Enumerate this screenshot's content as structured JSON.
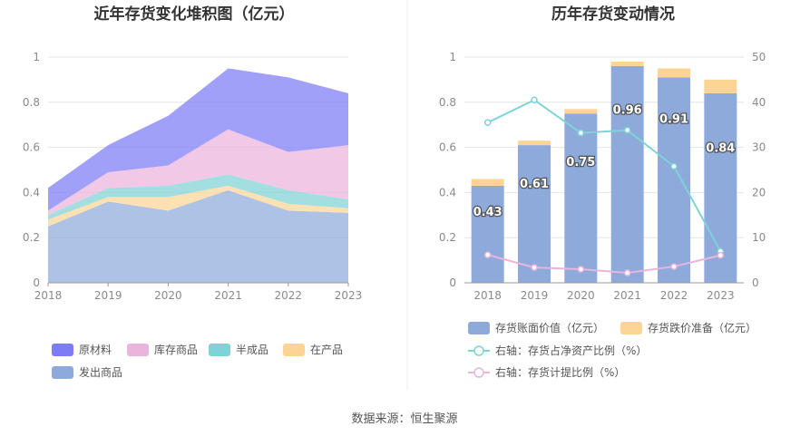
{
  "footer": "数据来源：恒生聚源",
  "chart_data": [
    {
      "type": "area",
      "stacked": true,
      "title": "近年存货变化堆积图（亿元）",
      "categories": [
        "2018",
        "2019",
        "2020",
        "2021",
        "2022",
        "2023"
      ],
      "ylim": [
        0,
        1
      ],
      "yticks": [
        "0",
        "0.2",
        "0.4",
        "0.6",
        "0.8",
        "1"
      ],
      "series": [
        {
          "name": "发出商品",
          "color": "#8eaadb",
          "values": [
            0.25,
            0.36,
            0.32,
            0.41,
            0.32,
            0.31
          ]
        },
        {
          "name": "在产品",
          "color": "#fcd594",
          "values": [
            0.03,
            0.02,
            0.06,
            0.02,
            0.03,
            0.02
          ]
        },
        {
          "name": "半成品",
          "color": "#7fd3d6",
          "values": [
            0.02,
            0.04,
            0.05,
            0.05,
            0.06,
            0.04
          ]
        },
        {
          "name": "库存商品",
          "color": "#ebb4dc",
          "values": [
            0.02,
            0.07,
            0.09,
            0.2,
            0.17,
            0.24
          ]
        },
        {
          "name": "原材料",
          "color": "#7c7cf5",
          "values": [
            0.1,
            0.12,
            0.22,
            0.27,
            0.33,
            0.23
          ]
        }
      ],
      "legend": [
        "原材料",
        "库存商品",
        "半成品",
        "在产品",
        "发出商品"
      ],
      "grid": true,
      "legend_position": "bottom"
    },
    {
      "type": "bar",
      "title": "历年存货变动情况",
      "categories": [
        "2018",
        "2019",
        "2020",
        "2021",
        "2022",
        "2023"
      ],
      "ylim": [
        0,
        1
      ],
      "yticks": [
        "0",
        "0.2",
        "0.4",
        "0.6",
        "0.8",
        "1"
      ],
      "y2lim": [
        0,
        50
      ],
      "y2ticks": [
        "0",
        "10",
        "20",
        "30",
        "40",
        "50"
      ],
      "series": [
        {
          "name": "存货账面价值（亿元）",
          "kind": "bar",
          "color": "#8eaadb",
          "values": [
            0.43,
            0.61,
            0.75,
            0.96,
            0.91,
            0.84
          ],
          "labels": [
            "0.43",
            "0.61",
            "0.75",
            "0.96",
            "0.91",
            "0.84"
          ]
        },
        {
          "name": "存货跌价准备（亿元）",
          "kind": "bar-stacked",
          "color": "#fcd594",
          "values": [
            0.03,
            0.02,
            0.02,
            0.02,
            0.04,
            0.06
          ]
        },
        {
          "name": "右轴：存货占净资产比例（%）",
          "kind": "line",
          "axis": "right",
          "color": "#7fd3d6",
          "values": [
            35.5,
            40.5,
            33.2,
            33.8,
            25.8,
            7
          ]
        },
        {
          "name": "右轴：存货计提比例（%）",
          "kind": "line",
          "axis": "right",
          "color": "#ebb4dc",
          "values": [
            6.2,
            3.4,
            3.0,
            2.2,
            3.6,
            6.1
          ]
        }
      ],
      "grid": true,
      "legend_position": "bottom"
    }
  ]
}
